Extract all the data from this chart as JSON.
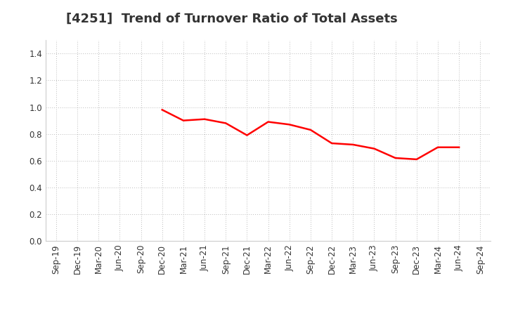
{
  "title": "[4251]  Trend of Turnover Ratio of Total Assets",
  "x_labels": [
    "Sep-19",
    "Dec-19",
    "Mar-20",
    "Jun-20",
    "Sep-20",
    "Dec-20",
    "Mar-21",
    "Jun-21",
    "Sep-21",
    "Dec-21",
    "Mar-22",
    "Jun-22",
    "Sep-22",
    "Dec-22",
    "Mar-23",
    "Jun-23",
    "Sep-23",
    "Dec-23",
    "Mar-24",
    "Jun-24",
    "Sep-24"
  ],
  "y_values": [
    null,
    null,
    null,
    null,
    null,
    0.98,
    0.9,
    0.91,
    0.88,
    0.79,
    0.89,
    0.87,
    0.83,
    0.73,
    0.72,
    0.69,
    0.62,
    0.61,
    0.7,
    0.7,
    null
  ],
  "line_color": "#ff0000",
  "line_width": 1.8,
  "ylim": [
    0.0,
    1.5
  ],
  "yticks": [
    0.0,
    0.2,
    0.4,
    0.6,
    0.8,
    1.0,
    1.2,
    1.4
  ],
  "background_color": "#ffffff",
  "grid_color": "#bbbbbb",
  "title_fontsize": 13,
  "tick_fontsize": 8.5,
  "title_color": "#333333"
}
